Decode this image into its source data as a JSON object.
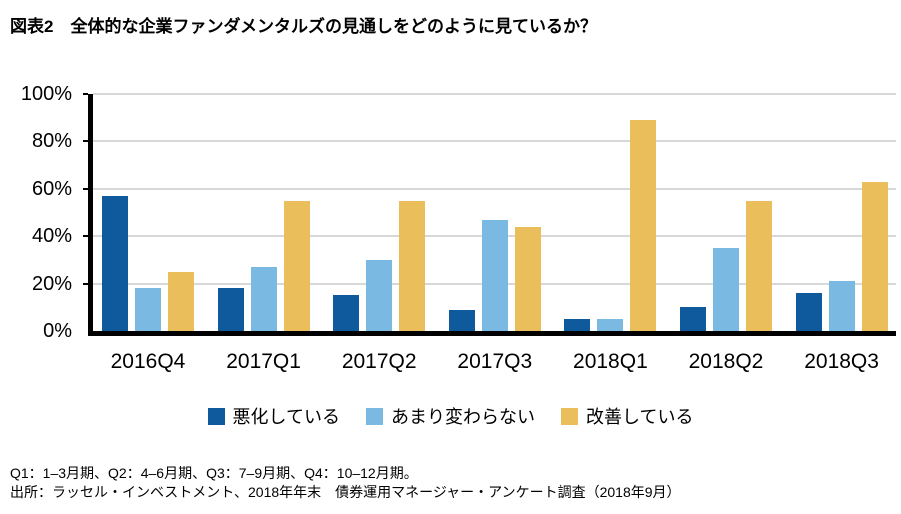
{
  "title": "図表2　全体的な企業ファンダメンタルズの見通しをどのように見ているか？",
  "chart_data": {
    "type": "bar",
    "title": "図表2　全体的な企業ファンダメンタルズの見通しをどのように見ているか？",
    "categories": [
      "2016Q4",
      "2017Q1",
      "2017Q2",
      "2017Q3",
      "2018Q1",
      "2018Q2",
      "2018Q3"
    ],
    "series": [
      {
        "key": "worsening",
        "name": "悪化している",
        "color": "#0e5a9c",
        "values": [
          57,
          18,
          15,
          9,
          5,
          10,
          16
        ]
      },
      {
        "key": "unchanged",
        "name": "あまり変わらない",
        "color": "#7abae2",
        "values": [
          18,
          27,
          30,
          47,
          5,
          35,
          21
        ]
      },
      {
        "key": "improving",
        "name": "改善している",
        "color": "#ebbe5c",
        "values": [
          25,
          55,
          55,
          44,
          89,
          55,
          63
        ]
      }
    ],
    "xlabel": "",
    "ylabel": "",
    "ylim": [
      0,
      100
    ],
    "y_ticks": [
      "0%",
      "20%",
      "40%",
      "60%",
      "80%",
      "100%"
    ],
    "grid": true,
    "legend_position": "bottom",
    "axis_color": "#000000",
    "gridline_color": "#d8d8d8"
  },
  "footnotes": {
    "line1": "Q1：1–3月期、Q2：4–6月期、Q3：7–9月期、Q4：10–12月期。",
    "line2": "出所：ラッセル・インベストメント、2018年年末　債券運用マネージャー・アンケート調査（2018年9月）"
  }
}
